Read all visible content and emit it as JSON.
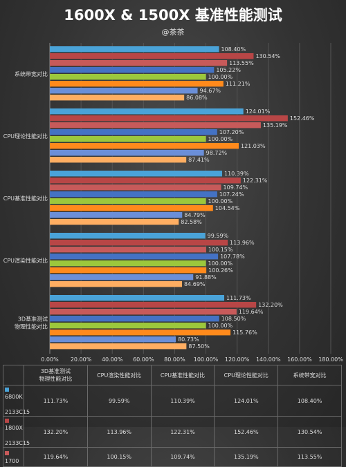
{
  "title": "1600X & 1500X 基准性能测试",
  "subtitle": "@茶茶",
  "chart_data": {
    "type": "bar",
    "orientation": "horizontal",
    "categories": [
      "3D基准测试物理性能对比",
      "CPU渲染性能对比",
      "CPU基准性能对比",
      "CPU理论性能对比",
      "系统带宽对比"
    ],
    "category_lines": [
      [
        "3D基准测试",
        "物理性能对比"
      ],
      [
        "CPU渲染性能对比"
      ],
      [
        "CPU基准性能对比"
      ],
      [
        "CPU理论性能对比"
      ],
      [
        "系统带宽对比"
      ]
    ],
    "table_header_lines": [
      [
        "3D基准测试",
        "物理性能对比"
      ],
      [
        "CPU渲染性能对比"
      ],
      [
        "CPU基准性能对比"
      ],
      [
        "CPU理论性能对比"
      ],
      [
        "系统带宽对比"
      ]
    ],
    "series": [
      {
        "name": "6800K 2133C15",
        "name_lines": [
          "6800K",
          "2133C15"
        ],
        "color": "#4aa3d8",
        "values": [
          111.73,
          99.59,
          110.39,
          124.01,
          108.4
        ],
        "labels": [
          "111.73%",
          "99.59%",
          "110.39%",
          "124.01%",
          "108.40%"
        ]
      },
      {
        "name": "1800X 2133C15",
        "name_lines": [
          "1800X",
          "2133C15"
        ],
        "color": "#b84646",
        "values": [
          132.2,
          113.96,
          122.31,
          152.46,
          130.54
        ],
        "labels": [
          "132.20%",
          "113.96%",
          "122.31%",
          "152.46%",
          "130.54%"
        ]
      },
      {
        "name": "1700",
        "name_lines": [
          "1700"
        ],
        "color": "#c75a5a",
        "values": [
          119.64,
          100.15,
          109.74,
          135.19,
          113.55
        ],
        "labels": [
          "119.64%",
          "100.15%",
          "109.74%",
          "135.19%",
          "113.55%"
        ]
      },
      {
        "color": "#4472c4",
        "values": [
          108.5,
          107.78,
          107.24,
          107.2,
          105.22
        ],
        "labels": [
          "108.50%",
          "107.78%",
          "107.24%",
          "107.20%",
          "105.22%"
        ]
      },
      {
        "color": "#9cc83c",
        "values": [
          100.0,
          100.0,
          100.0,
          100.0,
          100.0
        ],
        "labels": [
          "100.00%",
          "100.00%",
          "100.00%",
          "100.00%",
          "100.00%"
        ]
      },
      {
        "color": "#ff8a1c",
        "values": [
          115.76,
          100.26,
          104.54,
          121.03,
          111.21
        ],
        "labels": [
          "115.76%",
          "100.26%",
          "104.54%",
          "121.03%",
          "111.21%"
        ]
      },
      {
        "color": "#6b8fd8",
        "values": [
          80.73,
          91.88,
          84.79,
          98.72,
          94.67
        ],
        "labels": [
          "80.73%",
          "91.88%",
          "84.79%",
          "98.72%",
          "94.67%"
        ]
      },
      {
        "color": "#ffae62",
        "values": [
          87.5,
          84.69,
          82.58,
          87.41,
          86.08
        ],
        "labels": [
          "87.50%",
          "84.69%",
          "82.58%",
          "87.41%",
          "86.08%"
        ]
      }
    ],
    "xlim": [
      0,
      180
    ],
    "xticks": [
      0,
      20,
      40,
      60,
      80,
      100,
      120,
      140,
      160,
      180
    ],
    "xtick_labels": [
      "0.00%",
      "20.00%",
      "40.00%",
      "60.00%",
      "80.00%",
      "100.00%",
      "120.00%",
      "140.00%",
      "160.00%",
      "180.00%"
    ],
    "grid": true,
    "legend": "data table below chart"
  }
}
